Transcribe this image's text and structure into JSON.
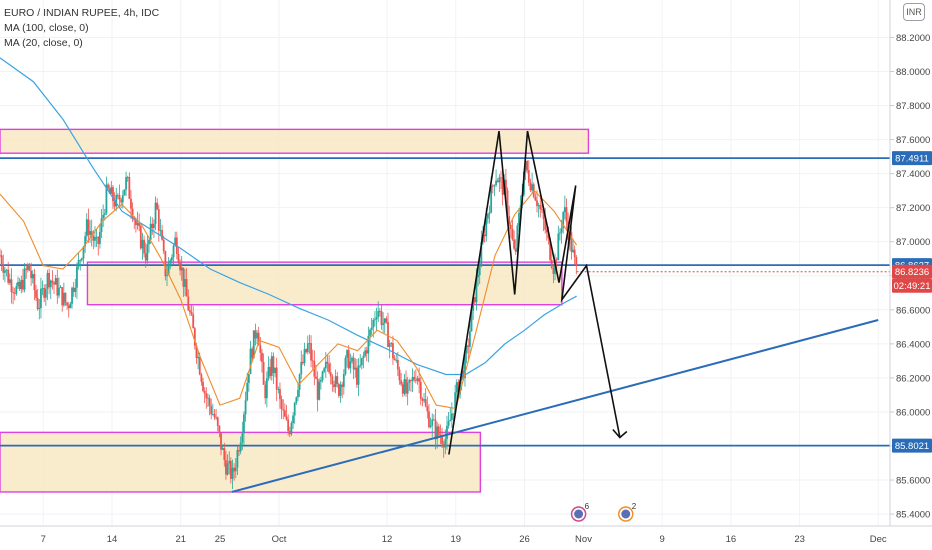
{
  "chart_data": {
    "type": "candlestick",
    "title": "EURO / INDIAN RUPEE, 4h, IDC",
    "indicators": [
      {
        "name": "MA (100, close, 0)",
        "color": "#3aa3e3"
      },
      {
        "name": "MA (20, close, 0)",
        "color": "#f08c2a"
      }
    ],
    "currency": "INR",
    "y_axis": {
      "ticks": [
        "88.2000",
        "88.0000",
        "87.8000",
        "87.6000",
        "87.4000",
        "87.2000",
        "87.0000",
        "86.8000",
        "86.6000",
        "86.4000",
        "86.2000",
        "86.0000",
        "85.8000",
        "85.6000",
        "85.4000"
      ],
      "range": [
        85.33,
        88.42
      ]
    },
    "x_axis": {
      "ticks": [
        {
          "label": "7",
          "day": 7
        },
        {
          "label": "14",
          "day": 14
        },
        {
          "label": "21",
          "day": 21
        },
        {
          "label": "25",
          "day": 25
        },
        {
          "label": "Oct",
          "day": 31
        },
        {
          "label": "12",
          "day": 42
        },
        {
          "label": "19",
          "day": 49
        },
        {
          "label": "26",
          "day": 56
        },
        {
          "label": "Nov",
          "day": 62
        },
        {
          "label": "9",
          "day": 70
        },
        {
          "label": "16",
          "day": 77
        },
        {
          "label": "23",
          "day": 84
        },
        {
          "label": "Dec",
          "day": 92
        }
      ],
      "range": [
        2.6,
        93.2
      ]
    },
    "price_labels": [
      {
        "value": 87.4911,
        "text": "87.4911",
        "color": "#2a6cb8"
      },
      {
        "value": 86.8627,
        "text": "86.8627",
        "color": "#2a6cb8"
      },
      {
        "value": 86.8236,
        "text": "86.8236",
        "color": "#e04848"
      },
      {
        "value": 86.7415,
        "text": "02:49:21",
        "color": "#e04848"
      },
      {
        "value": 85.8021,
        "text": "85.8021",
        "color": "#2a6cb8"
      }
    ],
    "horizontal_lines": [
      87.4911,
      86.8627,
      85.8021
    ],
    "current_price": 86.8236,
    "zones": [
      {
        "x0": 2.6,
        "x1": 62.5,
        "y0": 87.52,
        "y1": 87.66
      },
      {
        "x0": 11.5,
        "x1": 59.8,
        "y0": 86.63,
        "y1": 86.88
      },
      {
        "x0": 2.6,
        "x1": 51.5,
        "y0": 85.53,
        "y1": 85.88
      }
    ],
    "trendline": {
      "x0": 26.2,
      "y0": 85.53,
      "x1": 92.0,
      "y1": 86.54
    },
    "pattern_path": [
      {
        "x": 48.3,
        "y": 85.75
      },
      {
        "x": 53.4,
        "y": 87.65
      },
      {
        "x": 55.0,
        "y": 86.69
      },
      {
        "x": 56.3,
        "y": 87.65
      },
      {
        "x": 59.5,
        "y": 86.76
      },
      {
        "x": 61.2,
        "y": 87.33
      },
      {
        "x": 59.8,
        "y": 86.66
      },
      {
        "x": 62.3,
        "y": 86.86
      },
      {
        "x": 65.7,
        "y": 85.85
      }
    ],
    "events": [
      {
        "day": 61.5,
        "count": "6"
      },
      {
        "day": 66.3,
        "count": "2"
      }
    ],
    "ma100": [
      {
        "x": 2.6,
        "y": 88.08
      },
      {
        "x": 6,
        "y": 87.94
      },
      {
        "x": 9,
        "y": 87.72
      },
      {
        "x": 12,
        "y": 87.44
      },
      {
        "x": 15,
        "y": 87.18
      },
      {
        "x": 18,
        "y": 87.07
      },
      {
        "x": 21,
        "y": 86.96
      },
      {
        "x": 24,
        "y": 86.84
      },
      {
        "x": 27,
        "y": 86.76
      },
      {
        "x": 30,
        "y": 86.69
      },
      {
        "x": 33,
        "y": 86.61
      },
      {
        "x": 36,
        "y": 86.54
      },
      {
        "x": 39,
        "y": 86.45
      },
      {
        "x": 42,
        "y": 86.37
      },
      {
        "x": 45,
        "y": 86.28
      },
      {
        "x": 48,
        "y": 86.22
      },
      {
        "x": 50,
        "y": 86.22
      },
      {
        "x": 52,
        "y": 86.29
      },
      {
        "x": 54,
        "y": 86.4
      },
      {
        "x": 56,
        "y": 86.48
      },
      {
        "x": 58,
        "y": 86.57
      },
      {
        "x": 60,
        "y": 86.64
      },
      {
        "x": 61.3,
        "y": 86.68
      }
    ],
    "ma20": [
      {
        "x": 2.6,
        "y": 87.28
      },
      {
        "x": 5,
        "y": 87.12
      },
      {
        "x": 7,
        "y": 86.86
      },
      {
        "x": 9,
        "y": 86.84
      },
      {
        "x": 11,
        "y": 86.96
      },
      {
        "x": 13,
        "y": 87.12
      },
      {
        "x": 15,
        "y": 87.22
      },
      {
        "x": 17,
        "y": 87.1
      },
      {
        "x": 19,
        "y": 86.9
      },
      {
        "x": 21,
        "y": 86.66
      },
      {
        "x": 23,
        "y": 86.32
      },
      {
        "x": 25,
        "y": 86.04
      },
      {
        "x": 27,
        "y": 86.08
      },
      {
        "x": 29,
        "y": 86.42
      },
      {
        "x": 31,
        "y": 86.38
      },
      {
        "x": 33,
        "y": 86.16
      },
      {
        "x": 35,
        "y": 86.28
      },
      {
        "x": 37,
        "y": 86.4
      },
      {
        "x": 39,
        "y": 86.36
      },
      {
        "x": 41,
        "y": 86.48
      },
      {
        "x": 43,
        "y": 86.42
      },
      {
        "x": 45,
        "y": 86.26
      },
      {
        "x": 47,
        "y": 86.04
      },
      {
        "x": 49,
        "y": 86.02
      },
      {
        "x": 51,
        "y": 86.46
      },
      {
        "x": 53,
        "y": 86.92
      },
      {
        "x": 55,
        "y": 87.16
      },
      {
        "x": 57,
        "y": 87.3
      },
      {
        "x": 59,
        "y": 87.18
      },
      {
        "x": 61.3,
        "y": 86.98
      }
    ],
    "price_path": [
      {
        "x": 2.6,
        "y": 86.92
      },
      {
        "x": 3.5,
        "y": 86.78
      },
      {
        "x": 4.5,
        "y": 86.7
      },
      {
        "x": 5.5,
        "y": 86.86
      },
      {
        "x": 6.5,
        "y": 86.62
      },
      {
        "x": 7.5,
        "y": 86.8
      },
      {
        "x": 8.5,
        "y": 86.72
      },
      {
        "x": 9.5,
        "y": 86.62
      },
      {
        "x": 10.5,
        "y": 86.84
      },
      {
        "x": 11.5,
        "y": 87.1
      },
      {
        "x": 12.5,
        "y": 86.96
      },
      {
        "x": 13.5,
        "y": 87.3
      },
      {
        "x": 14.5,
        "y": 87.22
      },
      {
        "x": 15.5,
        "y": 87.36
      },
      {
        "x": 16.5,
        "y": 87.08
      },
      {
        "x": 17.5,
        "y": 86.92
      },
      {
        "x": 18.5,
        "y": 87.22
      },
      {
        "x": 19.5,
        "y": 86.8
      },
      {
        "x": 20.5,
        "y": 87.02
      },
      {
        "x": 21.5,
        "y": 86.7
      },
      {
        "x": 22.5,
        "y": 86.4
      },
      {
        "x": 23.5,
        "y": 86.1
      },
      {
        "x": 24.5,
        "y": 85.96
      },
      {
        "x": 25.5,
        "y": 85.7
      },
      {
        "x": 26.3,
        "y": 85.62
      },
      {
        "x": 27.2,
        "y": 85.9
      },
      {
        "x": 28.0,
        "y": 86.3
      },
      {
        "x": 28.8,
        "y": 86.52
      },
      {
        "x": 29.5,
        "y": 86.1
      },
      {
        "x": 30.3,
        "y": 86.3
      },
      {
        "x": 31.2,
        "y": 86.02
      },
      {
        "x": 32.0,
        "y": 85.88
      },
      {
        "x": 33.0,
        "y": 86.2
      },
      {
        "x": 34.0,
        "y": 86.4
      },
      {
        "x": 35.0,
        "y": 86.1
      },
      {
        "x": 36.0,
        "y": 86.3
      },
      {
        "x": 37.0,
        "y": 86.12
      },
      {
        "x": 38.0,
        "y": 86.32
      },
      {
        "x": 39.0,
        "y": 86.2
      },
      {
        "x": 40.0,
        "y": 86.4
      },
      {
        "x": 41.0,
        "y": 86.62
      },
      {
        "x": 42.0,
        "y": 86.46
      },
      {
        "x": 43.0,
        "y": 86.26
      },
      {
        "x": 44.0,
        "y": 86.1
      },
      {
        "x": 45.0,
        "y": 86.24
      },
      {
        "x": 46.0,
        "y": 86.0
      },
      {
        "x": 47.0,
        "y": 85.88
      },
      {
        "x": 48.0,
        "y": 85.84
      },
      {
        "x": 49.0,
        "y": 86.1
      },
      {
        "x": 50.0,
        "y": 86.3
      },
      {
        "x": 51.0,
        "y": 86.72
      },
      {
        "x": 52.0,
        "y": 87.1
      },
      {
        "x": 53.0,
        "y": 87.4
      },
      {
        "x": 54.0,
        "y": 87.3
      },
      {
        "x": 55.0,
        "y": 86.9
      },
      {
        "x": 56.0,
        "y": 87.45
      },
      {
        "x": 57.0,
        "y": 87.3
      },
      {
        "x": 58.0,
        "y": 87.1
      },
      {
        "x": 59.0,
        "y": 86.84
      },
      {
        "x": 60.0,
        "y": 87.2
      },
      {
        "x": 61.0,
        "y": 86.9
      },
      {
        "x": 61.3,
        "y": 86.82
      }
    ]
  }
}
